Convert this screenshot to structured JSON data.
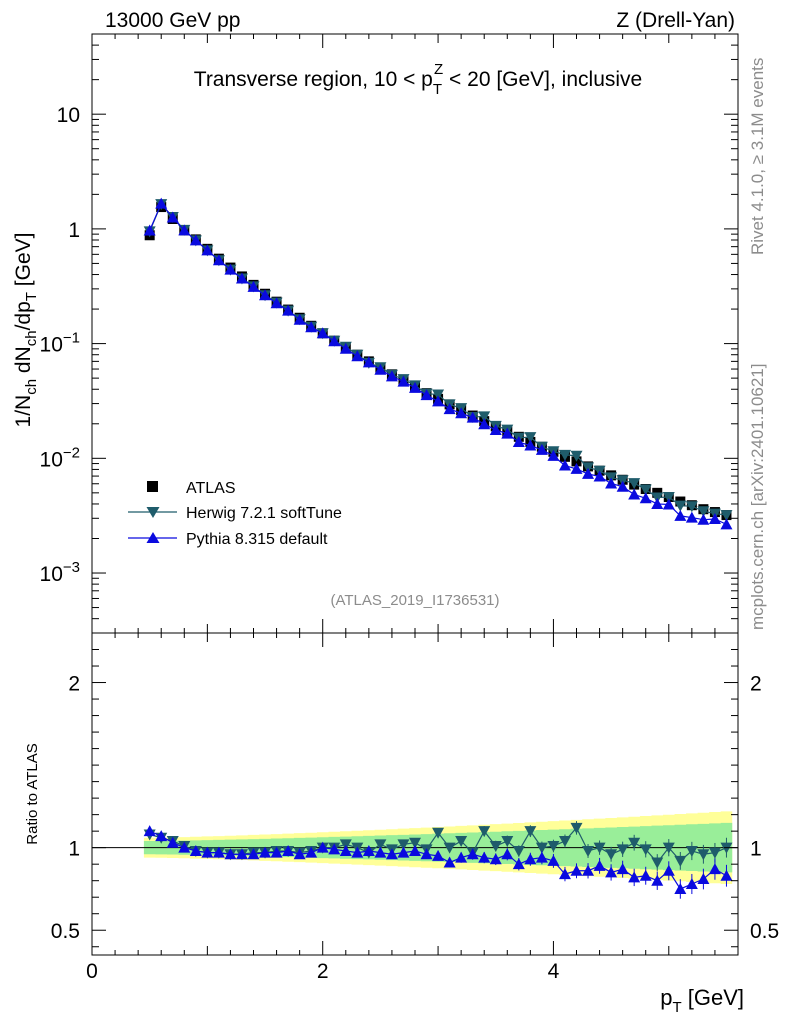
{
  "header": {
    "left_title": "13000 GeV pp",
    "right_title": "Z (Drell-Yan)"
  },
  "side_labels": {
    "rivet": "Rivet 4.1.0, ≥ 3.1M events",
    "site": "mcplots.cern.ch [arXiv:2401.10621]"
  },
  "chart_data": {
    "type": "scatter",
    "title": "Transverse region, 10 < p_T^Z < 20 [GeV], inclusive",
    "title_parts": {
      "a": "Transverse region, 10 < p",
      "sub": "T",
      "sup": "Z",
      "b": " < 20 [GeV], inclusive"
    },
    "analysis_id": "(ATLAS_2019_I1736531)",
    "xlabel": "p_T [GeV]",
    "xlim": [
      0,
      5.6
    ],
    "x_ticks": [
      "0",
      "2",
      "4"
    ],
    "y_scale": "log",
    "ylim": [
      0.0003,
      50
    ],
    "y_ticks": [
      "10^-3",
      "10^-2",
      "10^-1",
      "1",
      "10"
    ],
    "ylabel": "1/N_ch dN_ch/dp_T [GeV]",
    "ratio": {
      "ylabel": "Ratio to ATLAS",
      "ylim": [
        0.35,
        2.3
      ],
      "ticks": [
        "0.5",
        "1",
        "2"
      ],
      "band_green_halfwidth": [
        0.04,
        0.15
      ],
      "band_yellow_halfwidth": [
        0.06,
        0.22
      ]
    },
    "x": [
      0.5,
      0.6,
      0.7,
      0.8,
      0.9,
      1.0,
      1.1,
      1.2,
      1.3,
      1.4,
      1.5,
      1.6,
      1.7,
      1.8,
      1.9,
      2.0,
      2.1,
      2.2,
      2.3,
      2.4,
      2.5,
      2.6,
      2.7,
      2.8,
      2.9,
      3.0,
      3.1,
      3.2,
      3.3,
      3.4,
      3.5,
      3.6,
      3.7,
      3.8,
      3.9,
      4.0,
      4.1,
      4.2,
      4.3,
      4.4,
      4.5,
      4.6,
      4.7,
      4.8,
      4.9,
      5.0,
      5.1,
      5.2,
      5.3,
      5.4,
      5.5
    ],
    "series": [
      {
        "name": "ATLAS",
        "marker": "square",
        "color": "#000000",
        "values": [
          0.88,
          1.55,
          1.22,
          0.97,
          0.81,
          0.67,
          0.55,
          0.46,
          0.385,
          0.325,
          0.272,
          0.232,
          0.198,
          0.168,
          0.143,
          0.123,
          0.106,
          0.092,
          0.08,
          0.07,
          0.061,
          0.054,
          0.048,
          0.042,
          0.037,
          0.033,
          0.0295,
          0.0263,
          0.0236,
          0.0211,
          0.019,
          0.0171,
          0.0154,
          0.0139,
          0.0126,
          0.0114,
          0.0103,
          0.0094,
          0.0085,
          0.0078,
          0.0071,
          0.0065,
          0.0059,
          0.0054,
          0.005,
          0.0046,
          0.0042,
          0.0039,
          0.0036,
          0.0034,
          0.0032
        ]
      },
      {
        "name": "Herwig 7.2.1 softTune",
        "marker": "triangle-down",
        "color": "#1f5c6b",
        "ratio": [
          1.08,
          1.06,
          1.04,
          1.01,
          0.98,
          0.97,
          0.97,
          0.96,
          0.96,
          0.97,
          0.97,
          0.98,
          0.98,
          0.97,
          0.98,
          1.0,
          1.0,
          1.02,
          1.0,
          0.97,
          1.02,
          0.99,
          1.02,
          1.03,
          0.99,
          1.09,
          1.0,
          1.04,
          0.97,
          1.1,
          1.01,
          1.04,
          0.98,
          1.1,
          1.0,
          1.01,
          1.04,
          1.12,
          0.98,
          1.0,
          0.96,
          0.99,
          1.03,
          0.99,
          0.91,
          1.0,
          0.92,
          0.98,
          0.96,
          0.97,
          1.0
        ]
      },
      {
        "name": "Pythia 8.315 default",
        "marker": "triangle-up",
        "color": "#0a0adf",
        "ratio": [
          1.1,
          1.07,
          1.03,
          1.0,
          0.98,
          0.97,
          0.97,
          0.96,
          0.96,
          0.96,
          0.97,
          0.97,
          0.98,
          0.96,
          0.97,
          1.0,
          0.99,
          0.98,
          0.97,
          0.98,
          0.97,
          0.96,
          0.97,
          0.98,
          0.96,
          0.95,
          0.91,
          0.94,
          0.96,
          0.94,
          0.93,
          0.96,
          0.9,
          0.93,
          0.94,
          0.92,
          0.84,
          0.86,
          0.86,
          0.89,
          0.85,
          0.87,
          0.82,
          0.83,
          0.8,
          0.86,
          0.75,
          0.78,
          0.81,
          0.87,
          0.83
        ]
      }
    ],
    "legend_position": "middle-left"
  }
}
